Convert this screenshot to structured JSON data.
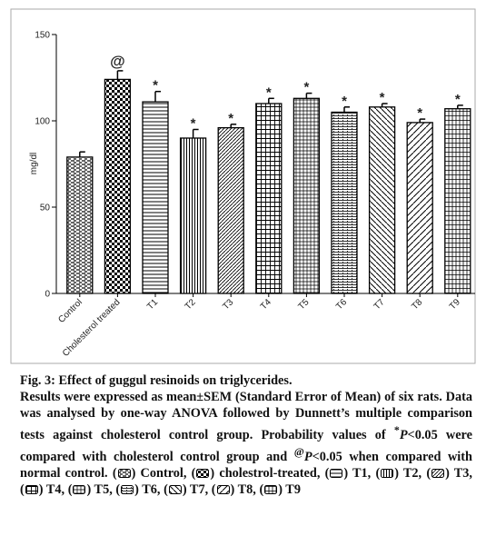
{
  "chart_data": {
    "type": "bar",
    "y_label": "mg/dl",
    "categories": [
      "Control",
      "Cholesterol treated",
      "T1",
      "T2",
      "T3",
      "T4",
      "T5",
      "T6",
      "T7",
      "T8",
      "T9"
    ],
    "values": [
      79,
      124,
      111,
      90,
      96,
      110,
      113,
      105,
      108,
      99,
      107
    ],
    "errors": [
      3,
      5,
      6,
      5,
      2,
      3,
      3,
      3,
      2,
      2,
      2
    ],
    "markers": [
      null,
      "@",
      "*",
      "*",
      "*",
      "*",
      "*",
      "*",
      "*",
      "*",
      "*"
    ],
    "ylim": [
      0,
      150
    ],
    "yticks": [
      0,
      50,
      100,
      150
    ]
  },
  "caption": {
    "title": "Fig. 3: Effect of guggul resinoids on triglycerides.",
    "text_1": "Results were expressed as mean±SEM (Standard Error of Mean) of six rats. Data was analysed by one-way ANOVA followed by Dunnett’s multiple comparison tests against cholesterol control group. Probability values of ",
    "sup_1": "*",
    "p_1": "P",
    "text_2": "<0.05 were compared with cholesterol control group and ",
    "sup_2": "@",
    "p_2": "P",
    "text_3": "<0.05 when compared with normal control.",
    "legend": [
      "Control,",
      "cholestrol-treated,",
      "T1,",
      "T2,",
      "T3,",
      "T4,",
      "T5,",
      "T6,",
      "T7,",
      "T8,",
      "T9"
    ]
  }
}
